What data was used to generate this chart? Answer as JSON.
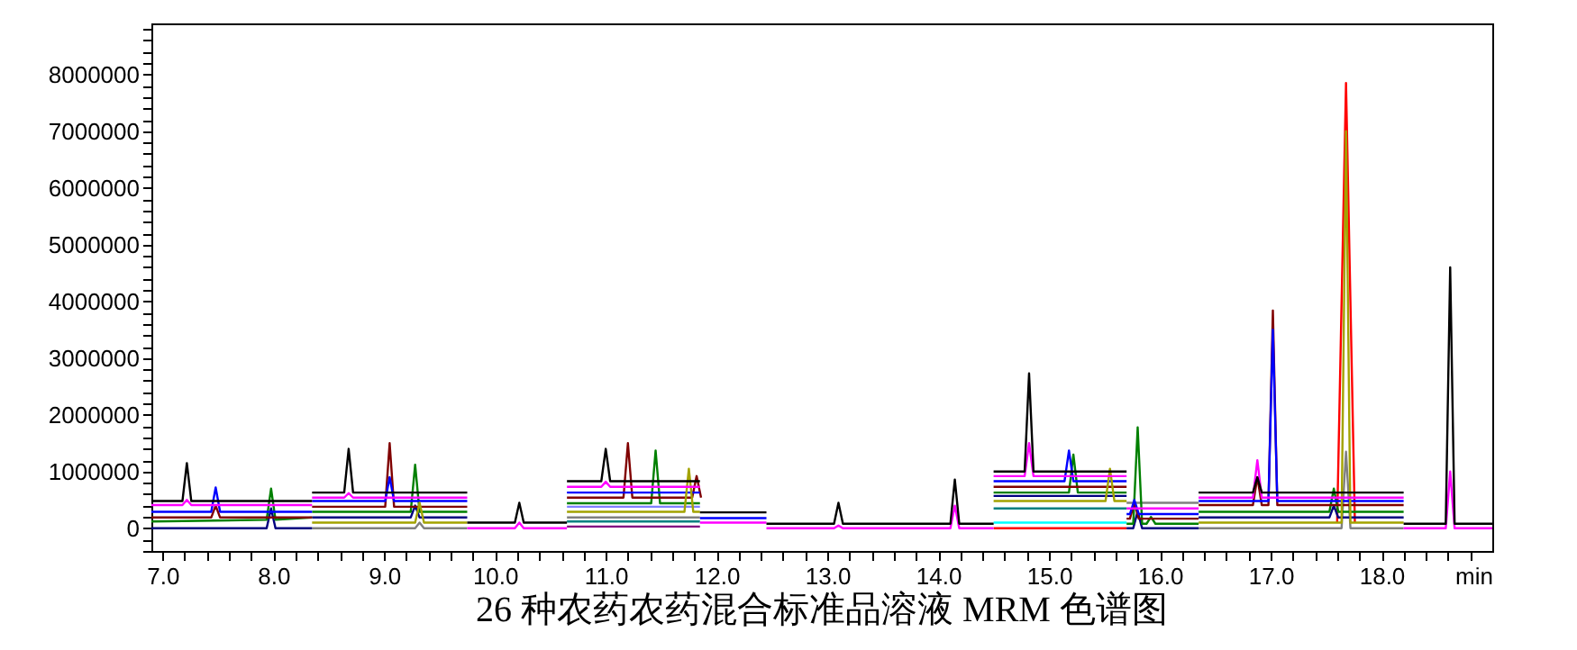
{
  "chart_data": {
    "type": "line",
    "title": "26 种农药农药混合标准品溶液 MRM 色谱图",
    "xlabel": "min",
    "xlim": [
      6.9,
      19.0
    ],
    "ylim": [
      -400000,
      8900000
    ],
    "xticks": [
      {
        "value": 7,
        "label": "7.0"
      },
      {
        "value": 7.2,
        "label": null
      },
      {
        "value": 7.4,
        "label": null
      },
      {
        "value": 7.6,
        "label": null
      },
      {
        "value": 7.8,
        "label": null
      },
      {
        "value": 8,
        "label": "8.0"
      },
      {
        "value": 8.2,
        "label": null
      },
      {
        "value": 8.4,
        "label": null
      },
      {
        "value": 8.6,
        "label": null
      },
      {
        "value": 8.8,
        "label": null
      },
      {
        "value": 9,
        "label": "9.0"
      },
      {
        "value": 9.2,
        "label": null
      },
      {
        "value": 9.4,
        "label": null
      },
      {
        "value": 9.6,
        "label": null
      },
      {
        "value": 9.8,
        "label": null
      },
      {
        "value": 10,
        "label": "10.0"
      },
      {
        "value": 10.2,
        "label": null
      },
      {
        "value": 10.4,
        "label": null
      },
      {
        "value": 10.6,
        "label": null
      },
      {
        "value": 10.8,
        "label": null
      },
      {
        "value": 11,
        "label": "11.0"
      },
      {
        "value": 11.2,
        "label": null
      },
      {
        "value": 11.4,
        "label": null
      },
      {
        "value": 11.6,
        "label": null
      },
      {
        "value": 11.8,
        "label": null
      },
      {
        "value": 12,
        "label": "12.0"
      },
      {
        "value": 12.2,
        "label": null
      },
      {
        "value": 12.4,
        "label": null
      },
      {
        "value": 12.6,
        "label": null
      },
      {
        "value": 12.8,
        "label": null
      },
      {
        "value": 13,
        "label": "13.0"
      },
      {
        "value": 13.2,
        "label": null
      },
      {
        "value": 13.4,
        "label": null
      },
      {
        "value": 13.6,
        "label": null
      },
      {
        "value": 13.8,
        "label": null
      },
      {
        "value": 14,
        "label": "14.0"
      },
      {
        "value": 14.2,
        "label": null
      },
      {
        "value": 14.4,
        "label": null
      },
      {
        "value": 14.6,
        "label": null
      },
      {
        "value": 14.8,
        "label": null
      },
      {
        "value": 15,
        "label": "15.0"
      },
      {
        "value": 15.2,
        "label": null
      },
      {
        "value": 15.4,
        "label": null
      },
      {
        "value": 15.6,
        "label": null
      },
      {
        "value": 15.8,
        "label": null
      },
      {
        "value": 16,
        "label": "16.0"
      },
      {
        "value": 16.2,
        "label": null
      },
      {
        "value": 16.4,
        "label": null
      },
      {
        "value": 16.6,
        "label": null
      },
      {
        "value": 16.8,
        "label": null
      },
      {
        "value": 17,
        "label": "17.0"
      },
      {
        "value": 17.2,
        "label": null
      },
      {
        "value": 17.4,
        "label": null
      },
      {
        "value": 17.6,
        "label": null
      },
      {
        "value": 17.8,
        "label": null
      },
      {
        "value": 18,
        "label": "18.0"
      },
      {
        "value": 18.2,
        "label": null
      },
      {
        "value": 18.4,
        "label": null
      },
      {
        "value": 18.6,
        "label": null
      },
      {
        "value": 18.8,
        "label": null
      }
    ],
    "yticks": [
      {
        "value": -400000,
        "label": null
      },
      {
        "value": -200000,
        "label": null
      },
      0,
      {
        "value": 200000,
        "label": null
      },
      {
        "value": 400000,
        "label": null
      },
      {
        "value": 600000,
        "label": null
      },
      {
        "value": 800000,
        "label": null
      },
      1000000,
      {
        "value": 1200000,
        "label": null
      },
      {
        "value": 1400000,
        "label": null
      },
      {
        "value": 1600000,
        "label": null
      },
      {
        "value": 1800000,
        "label": null
      },
      2000000,
      {
        "value": 2200000,
        "label": null
      },
      {
        "value": 2400000,
        "label": null
      },
      {
        "value": 2600000,
        "label": null
      },
      {
        "value": 2800000,
        "label": null
      },
      3000000,
      {
        "value": 3200000,
        "label": null
      },
      {
        "value": 3400000,
        "label": null
      },
      {
        "value": 3600000,
        "label": null
      },
      {
        "value": 3800000,
        "label": null
      },
      4000000,
      {
        "value": 4200000,
        "label": null
      },
      {
        "value": 4400000,
        "label": null
      },
      {
        "value": 4600000,
        "label": null
      },
      {
        "value": 4800000,
        "label": null
      },
      5000000,
      {
        "value": 5200000,
        "label": null
      },
      {
        "value": 5400000,
        "label": null
      },
      {
        "value": 5600000,
        "label": null
      },
      {
        "value": 5800000,
        "label": null
      },
      6000000,
      {
        "value": 6200000,
        "label": null
      },
      {
        "value": 6400000,
        "label": null
      },
      {
        "value": 6600000,
        "label": null
      },
      {
        "value": 6800000,
        "label": null
      },
      7000000,
      {
        "value": 7200000,
        "label": null
      },
      {
        "value": 7400000,
        "label": null
      },
      {
        "value": 7600000,
        "label": null
      },
      {
        "value": 7800000,
        "label": null
      },
      8000000,
      {
        "value": 8200000,
        "label": null
      },
      {
        "value": 8400000,
        "label": null
      },
      {
        "value": 8600000,
        "label": null
      },
      {
        "value": 8800000,
        "label": null
      }
    ],
    "grid": false,
    "marker": "none",
    "line_style": "solid",
    "series": [
      {
        "color": "#ff0000",
        "x": [
          14.5,
          15.7,
          null,
          17.6,
          17.68,
          17.76
        ],
        "values": [
          0,
          0,
          null,
          100000,
          7850000,
          100000
        ]
      },
      {
        "color": "#00ffff",
        "x": [
          14.5,
          15.7
        ],
        "values": [
          100000,
          100000
        ]
      },
      {
        "color": "#800080",
        "x": [
          10.65,
          11.85
        ],
        "values": [
          30000,
          30000
        ]
      },
      {
        "color": "#008080",
        "x": [
          10.65,
          11.85,
          null,
          14.5,
          15.7
        ],
        "values": [
          120000,
          120000,
          null,
          350000,
          350000
        ]
      },
      {
        "color": "#8080ff",
        "x": [
          10.65,
          11.85
        ],
        "values": [
          380000,
          380000
        ]
      },
      {
        "color": "#808080",
        "x": [
          8.35,
          9.28,
          9.32,
          9.36,
          9.75,
          null,
          10.65,
          11.85,
          null,
          15.7,
          16.35,
          null,
          16.35,
          17.64,
          17.68,
          17.72,
          18.2
        ],
        "values": [
          0,
          0,
          100000,
          0,
          0,
          null,
          190000,
          190000,
          null,
          450000,
          450000,
          null,
          0,
          0,
          1350000,
          0,
          0
        ]
      },
      {
        "color": "#000080",
        "x": [
          6.9,
          7.94,
          7.98,
          8.02,
          8.35,
          null,
          8.35,
          9.24,
          9.28,
          9.32,
          9.75,
          null,
          14.5,
          15.7,
          null,
          15.7,
          15.76,
          15.8,
          15.84,
          16.35,
          null,
          16.35,
          17.53,
          17.57,
          17.61,
          18.2
        ],
        "values": [
          0,
          0,
          350000,
          0,
          0,
          null,
          190000,
          190000,
          400000,
          190000,
          190000,
          null,
          570000,
          570000,
          null,
          0,
          0,
          300000,
          0,
          0,
          null,
          190000,
          190000,
          400000,
          190000,
          190000
        ]
      },
      {
        "color": "#008000",
        "x": [
          6.9,
          7.94,
          7.98,
          8.02,
          8.35,
          null,
          8.35,
          9.24,
          9.28,
          9.32,
          9.75,
          null,
          10.65,
          11.41,
          11.45,
          11.49,
          11.85,
          null,
          14.5,
          15.18,
          15.22,
          15.26,
          15.7,
          null,
          15.7,
          15.76,
          15.8,
          15.84,
          15.88,
          15.92,
          15.96,
          16.35,
          null,
          16.35,
          17.53,
          17.57,
          17.61,
          18.2
        ],
        "values": [
          120000,
          150000,
          700000,
          150000,
          190000,
          null,
          290000,
          290000,
          1120000,
          290000,
          290000,
          null,
          440000,
          440000,
          1370000,
          440000,
          440000,
          null,
          630000,
          630000,
          1300000,
          630000,
          630000,
          null,
          80000,
          80000,
          1780000,
          80000,
          80000,
          200000,
          80000,
          80000,
          null,
          290000,
          290000,
          700000,
          290000,
          290000
        ]
      },
      {
        "color": "#800000",
        "x": [
          6.9,
          7.44,
          7.48,
          7.52,
          8.35,
          null,
          8.35,
          9.01,
          9.05,
          9.09,
          9.75,
          null,
          10.65,
          11.16,
          11.2,
          11.24,
          11.78,
          11.82,
          11.86,
          null,
          14.5,
          15.7,
          null,
          15.7,
          15.73,
          15.77,
          15.81,
          16.35,
          null,
          16.35,
          16.84,
          16.88,
          16.92,
          16.98,
          17.02,
          17.06,
          18.2
        ],
        "values": [
          190000,
          190000,
          400000,
          190000,
          190000,
          null,
          380000,
          380000,
          1500000,
          380000,
          380000,
          null,
          540000,
          540000,
          1500000,
          540000,
          540000,
          920000,
          540000,
          null,
          730000,
          730000,
          null,
          170000,
          170000,
          450000,
          170000,
          170000,
          null,
          410000,
          410000,
          900000,
          410000,
          410000,
          3840000,
          410000,
          410000
        ]
      },
      {
        "color": "#0000ff",
        "x": [
          6.9,
          7.44,
          7.48,
          7.52,
          8.35,
          null,
          8.35,
          9.01,
          9.05,
          9.09,
          9.75,
          null,
          10.65,
          11.85,
          null,
          11.85,
          12.45,
          null,
          14.5,
          15.14,
          15.18,
          15.22,
          15.7,
          null,
          15.7,
          15.73,
          15.77,
          15.81,
          16.35,
          null,
          16.35,
          16.98,
          17.02,
          17.06,
          18.2
        ],
        "values": [
          290000,
          290000,
          720000,
          290000,
          290000,
          null,
          480000,
          480000,
          900000,
          480000,
          480000,
          null,
          630000,
          630000,
          null,
          180000,
          180000,
          null,
          830000,
          830000,
          1370000,
          830000,
          830000,
          null,
          250000,
          250000,
          500000,
          250000,
          250000,
          null,
          480000,
          480000,
          3500000,
          480000,
          480000
        ]
      },
      {
        "color": "#a3a300",
        "x": [
          8.35,
          9.28,
          9.32,
          9.36,
          9.75,
          null,
          10.65,
          11.71,
          11.75,
          11.79,
          11.85,
          null,
          14.5,
          15.51,
          15.55,
          15.59,
          15.7,
          null,
          16.35,
          17.64,
          17.68,
          17.72,
          18.2
        ],
        "values": [
          100000,
          100000,
          450000,
          100000,
          100000,
          null,
          290000,
          290000,
          1050000,
          290000,
          290000,
          null,
          480000,
          480000,
          1050000,
          480000,
          480000,
          null,
          100000,
          100000,
          7000000,
          100000,
          100000
        ]
      },
      {
        "color": "#ff00ff",
        "x": [
          6.9,
          7.18,
          7.22,
          7.26,
          8.35,
          null,
          8.35,
          8.64,
          8.68,
          8.72,
          9.75,
          null,
          9.75,
          10.18,
          10.22,
          10.26,
          10.65,
          null,
          10.65,
          10.96,
          11.0,
          11.04,
          11.85,
          null,
          11.85,
          12.45,
          null,
          12.45,
          13.06,
          13.1,
          13.14,
          14.11,
          14.15,
          14.19,
          14.5,
          null,
          14.5,
          14.78,
          14.82,
          14.86,
          15.7,
          null,
          15.7,
          16.35,
          null,
          16.35,
          16.84,
          16.88,
          16.92,
          18.2,
          null,
          18.2,
          18.58,
          18.62,
          18.66,
          19.0
        ],
        "values": [
          410000,
          410000,
          500000,
          410000,
          410000,
          null,
          540000,
          540000,
          620000,
          540000,
          540000,
          null,
          0,
          0,
          100000,
          0,
          0,
          null,
          730000,
          730000,
          820000,
          730000,
          730000,
          null,
          100000,
          100000,
          null,
          0,
          0,
          50000,
          0,
          0,
          400000,
          0,
          0,
          null,
          920000,
          920000,
          1500000,
          920000,
          920000,
          null,
          350000,
          350000,
          null,
          540000,
          540000,
          1200000,
          540000,
          540000,
          null,
          0,
          0,
          1000000,
          0,
          0
        ]
      },
      {
        "color": "#000000",
        "x": [
          6.9,
          7.18,
          7.22,
          7.26,
          8.35,
          null,
          8.35,
          8.64,
          8.68,
          8.72,
          9.75,
          null,
          9.75,
          10.18,
          10.22,
          10.26,
          10.65,
          null,
          10.65,
          10.96,
          11.0,
          11.04,
          11.85,
          null,
          11.85,
          12.45,
          null,
          12.45,
          13.06,
          13.1,
          13.14,
          14.11,
          14.15,
          14.19,
          14.5,
          null,
          14.5,
          14.78,
          14.82,
          14.86,
          15.7,
          null,
          16.35,
          16.84,
          16.88,
          16.92,
          18.2,
          null,
          18.2,
          18.58,
          18.62,
          18.66,
          19.0
        ],
        "values": [
          480000,
          480000,
          1150000,
          480000,
          480000,
          null,
          630000,
          630000,
          1400000,
          630000,
          630000,
          null,
          100000,
          100000,
          450000,
          100000,
          100000,
          null,
          830000,
          830000,
          1400000,
          830000,
          830000,
          null,
          280000,
          280000,
          null,
          80000,
          80000,
          450000,
          80000,
          80000,
          860000,
          80000,
          80000,
          null,
          1000000,
          1000000,
          2730000,
          1000000,
          1000000,
          null,
          630000,
          630000,
          900000,
          630000,
          630000,
          null,
          80000,
          80000,
          4600000,
          80000,
          80000
        ]
      }
    ]
  }
}
